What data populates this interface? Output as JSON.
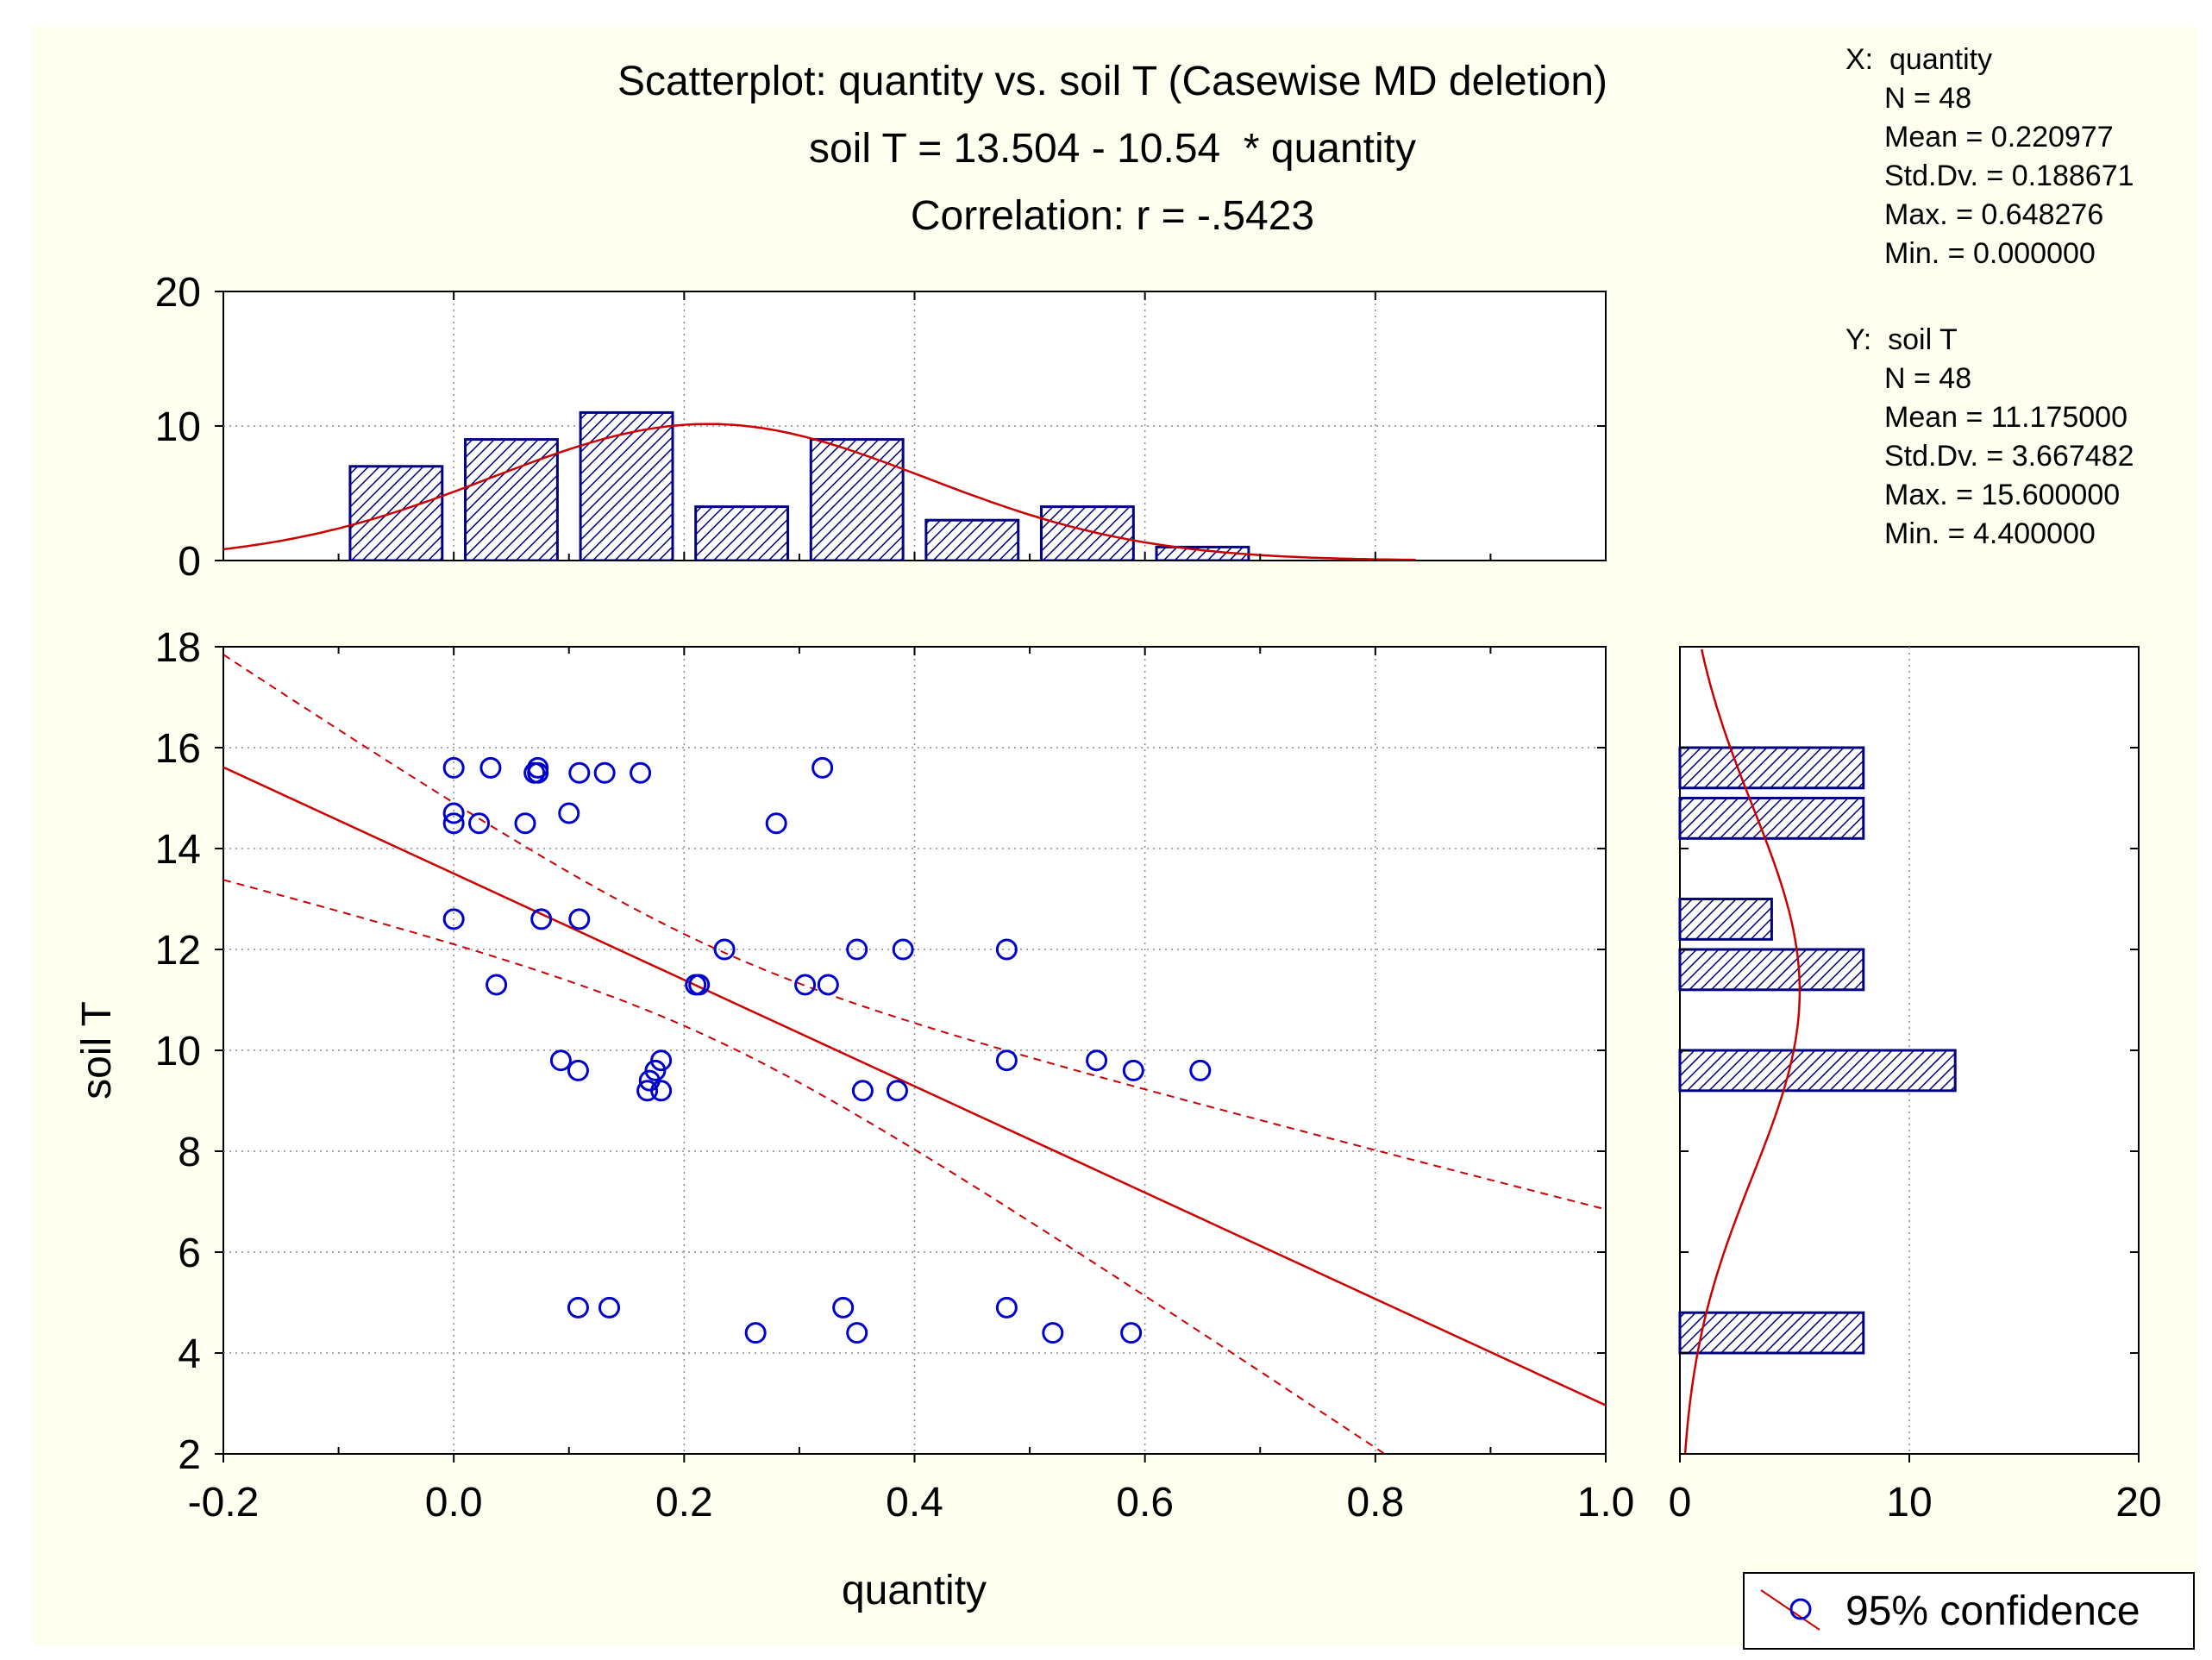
{
  "chart_data": {
    "type": "scatter",
    "title_lines": [
      "Scatterplot: quantity vs. soil T (Casewise MD deletion)",
      "soil T = 13.504 - 10.54  * quantity",
      "Correlation: r = -.5423"
    ],
    "xlabel": "quantity",
    "ylabel": "soil T",
    "xlim": [
      -0.2,
      1.0
    ],
    "ylim": [
      2,
      18
    ],
    "x_ticks": [
      -0.2,
      0.0,
      0.2,
      0.4,
      0.6,
      0.8,
      1.0
    ],
    "x_tick_labels": [
      "-0.2",
      "0.0",
      "0.2",
      "0.4",
      "0.6",
      "0.8",
      "1.0"
    ],
    "y_ticks": [
      2,
      4,
      6,
      8,
      10,
      12,
      14,
      16,
      18
    ],
    "y_tick_labels": [
      "2",
      "4",
      "6",
      "8",
      "10",
      "12",
      "14",
      "16",
      "18"
    ],
    "grid": true,
    "colors": {
      "points": "#0000cc",
      "fit": "#cc0000",
      "bars": "#000080",
      "background": "#fffff0"
    },
    "regression": {
      "intercept": 13.504,
      "slope": -10.54,
      "n": 48
    },
    "points": [
      [
        0.0,
        15.6
      ],
      [
        0.032,
        15.6
      ],
      [
        0.073,
        15.6
      ],
      [
        0.073,
        15.5
      ],
      [
        0.109,
        15.5
      ],
      [
        0.131,
        15.5
      ],
      [
        0.162,
        15.5
      ],
      [
        0.32,
        15.6
      ],
      [
        0.0,
        14.7
      ],
      [
        0.0,
        14.5
      ],
      [
        0.022,
        14.5
      ],
      [
        0.062,
        14.5
      ],
      [
        0.1,
        14.7
      ],
      [
        0.28,
        14.5
      ],
      [
        0.0,
        12.6
      ],
      [
        0.076,
        12.6
      ],
      [
        0.109,
        12.6
      ],
      [
        0.235,
        12.0
      ],
      [
        0.35,
        12.0
      ],
      [
        0.39,
        12.0
      ],
      [
        0.48,
        12.0
      ],
      [
        0.037,
        11.3
      ],
      [
        0.213,
        11.3
      ],
      [
        0.305,
        11.3
      ],
      [
        0.325,
        11.3
      ],
      [
        0.093,
        9.8
      ],
      [
        0.18,
        9.8
      ],
      [
        0.48,
        9.8
      ],
      [
        0.558,
        9.8
      ],
      [
        0.108,
        9.6
      ],
      [
        0.175,
        9.6
      ],
      [
        0.59,
        9.6
      ],
      [
        0.648,
        9.6
      ],
      [
        0.168,
        9.2
      ],
      [
        0.18,
        9.2
      ],
      [
        0.355,
        9.2
      ],
      [
        0.385,
        9.2
      ],
      [
        0.108,
        4.9
      ],
      [
        0.135,
        4.9
      ],
      [
        0.338,
        4.9
      ],
      [
        0.48,
        4.9
      ],
      [
        0.262,
        4.4
      ],
      [
        0.35,
        4.4
      ],
      [
        0.52,
        4.4
      ],
      [
        0.588,
        4.4
      ],
      [
        0.07,
        15.5
      ],
      [
        0.17,
        9.4
      ],
      [
        0.21,
        11.3
      ]
    ],
    "x_histogram": {
      "ylim": [
        0,
        20
      ],
      "y_ticks": [
        0,
        10,
        20
      ],
      "y_tick_labels": [
        "0",
        "10",
        "20"
      ],
      "bins": [
        {
          "from": -0.1,
          "to": 0.0,
          "count": 7
        },
        {
          "from": 0.0,
          "to": 0.1,
          "count": 9
        },
        {
          "from": 0.1,
          "to": 0.2,
          "count": 11
        },
        {
          "from": 0.2,
          "to": 0.3,
          "count": 4
        },
        {
          "from": 0.3,
          "to": 0.4,
          "count": 9
        },
        {
          "from": 0.4,
          "to": 0.5,
          "count": 3
        },
        {
          "from": 0.5,
          "to": 0.6,
          "count": 4
        },
        {
          "from": 0.6,
          "to": 0.7,
          "count": 1
        }
      ]
    },
    "y_histogram": {
      "xlim": [
        0,
        20
      ],
      "x_ticks": [
        0,
        10,
        20
      ],
      "x_tick_labels": [
        "0",
        "10",
        "20"
      ],
      "bins": [
        {
          "from": 4,
          "to": 4.8,
          "count": 8
        },
        {
          "from": 9.2,
          "to": 10.0,
          "count": 12
        },
        {
          "from": 11.2,
          "to": 12.0,
          "count": 8
        },
        {
          "from": 12.2,
          "to": 13.0,
          "count": 4
        },
        {
          "from": 14.2,
          "to": 15.0,
          "count": 8
        },
        {
          "from": 15.2,
          "to": 16.0,
          "count": 8
        }
      ]
    },
    "stats": {
      "x": {
        "header": "X:  quantity",
        "lines": [
          "N = 48",
          "Mean = 0.220977",
          "Std.Dv. = 0.188671",
          "Max. = 0.648276",
          "Min. = 0.000000"
        ],
        "mean": 0.220977,
        "sd": 0.188671
      },
      "y": {
        "header": "Y:  soil T",
        "lines": [
          "N = 48",
          "Mean = 11.175000",
          "Std.Dv. = 3.667482",
          "Max. = 15.600000",
          "Min. = 4.400000"
        ],
        "mean": 11.175,
        "sd": 3.667482
      }
    },
    "legend": {
      "label": "95% confidence",
      "position": "bottom-right"
    }
  }
}
